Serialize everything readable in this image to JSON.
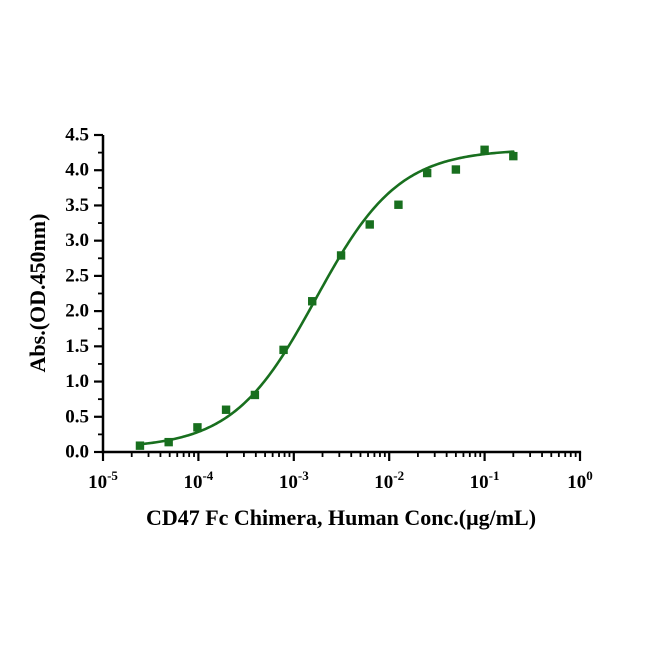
{
  "page": {
    "background": "#ffffff"
  },
  "chart_data": {
    "type": "scatter",
    "subtype": "elisa-dose-response-curve",
    "title": "",
    "xlabel": "CD47 Fc Chimera, Human Conc.(μg/mL)",
    "ylabel": "Abs.(OD.450nm)",
    "x_scale": "log10",
    "xlim": [
      1e-05,
      1
    ],
    "ylim": [
      0,
      4.5
    ],
    "grid": false,
    "legend": false,
    "axis_color": "#000000",
    "y_tick_step": 0.5,
    "y_minor_step": 0.25,
    "y_ticks": [
      {
        "value": 0.0,
        "label": "0.0"
      },
      {
        "value": 0.5,
        "label": "0.5"
      },
      {
        "value": 1.0,
        "label": "1.0"
      },
      {
        "value": 1.5,
        "label": "1.5"
      },
      {
        "value": 2.0,
        "label": "2.0"
      },
      {
        "value": 2.5,
        "label": "2.5"
      },
      {
        "value": 3.0,
        "label": "3.0"
      },
      {
        "value": 3.5,
        "label": "3.5"
      },
      {
        "value": 4.0,
        "label": "4.0"
      },
      {
        "value": 4.5,
        "label": "4.5"
      }
    ],
    "x_ticks": [
      {
        "value": 1e-05,
        "base": "10",
        "exponent": "-5"
      },
      {
        "value": 0.0001,
        "base": "10",
        "exponent": "-4"
      },
      {
        "value": 0.001,
        "base": "10",
        "exponent": "-3"
      },
      {
        "value": 0.01,
        "base": "10",
        "exponent": "-2"
      },
      {
        "value": 0.1,
        "base": "10",
        "exponent": "-1"
      },
      {
        "value": 1,
        "base": "10",
        "exponent": "0"
      }
    ],
    "series": [
      {
        "name": "CD47 Fc Chimera, Human",
        "color": "#186f1e",
        "marker": "square",
        "points": [
          {
            "x": 2.44e-05,
            "y": 0.09
          },
          {
            "x": 4.88e-05,
            "y": 0.14
          },
          {
            "x": 9.77e-05,
            "y": 0.35
          },
          {
            "x": 0.000195,
            "y": 0.6
          },
          {
            "x": 0.000391,
            "y": 0.81
          },
          {
            "x": 0.000781,
            "y": 1.45
          },
          {
            "x": 0.00156,
            "y": 2.14
          },
          {
            "x": 0.00313,
            "y": 2.79
          },
          {
            "x": 0.00625,
            "y": 3.23
          },
          {
            "x": 0.0125,
            "y": 3.51
          },
          {
            "x": 0.025,
            "y": 3.96
          },
          {
            "x": 0.05,
            "y": 4.01
          },
          {
            "x": 0.1,
            "y": 4.29
          },
          {
            "x": 0.2,
            "y": 4.2
          }
        ]
      }
    ],
    "fit_curve": {
      "model": "4PL",
      "bottom": 0.05,
      "top": 4.3,
      "ec50": 0.0017,
      "hill": 1.0,
      "x_range": [
        2.44e-05,
        0.2
      ],
      "color": "#186f1e"
    }
  }
}
